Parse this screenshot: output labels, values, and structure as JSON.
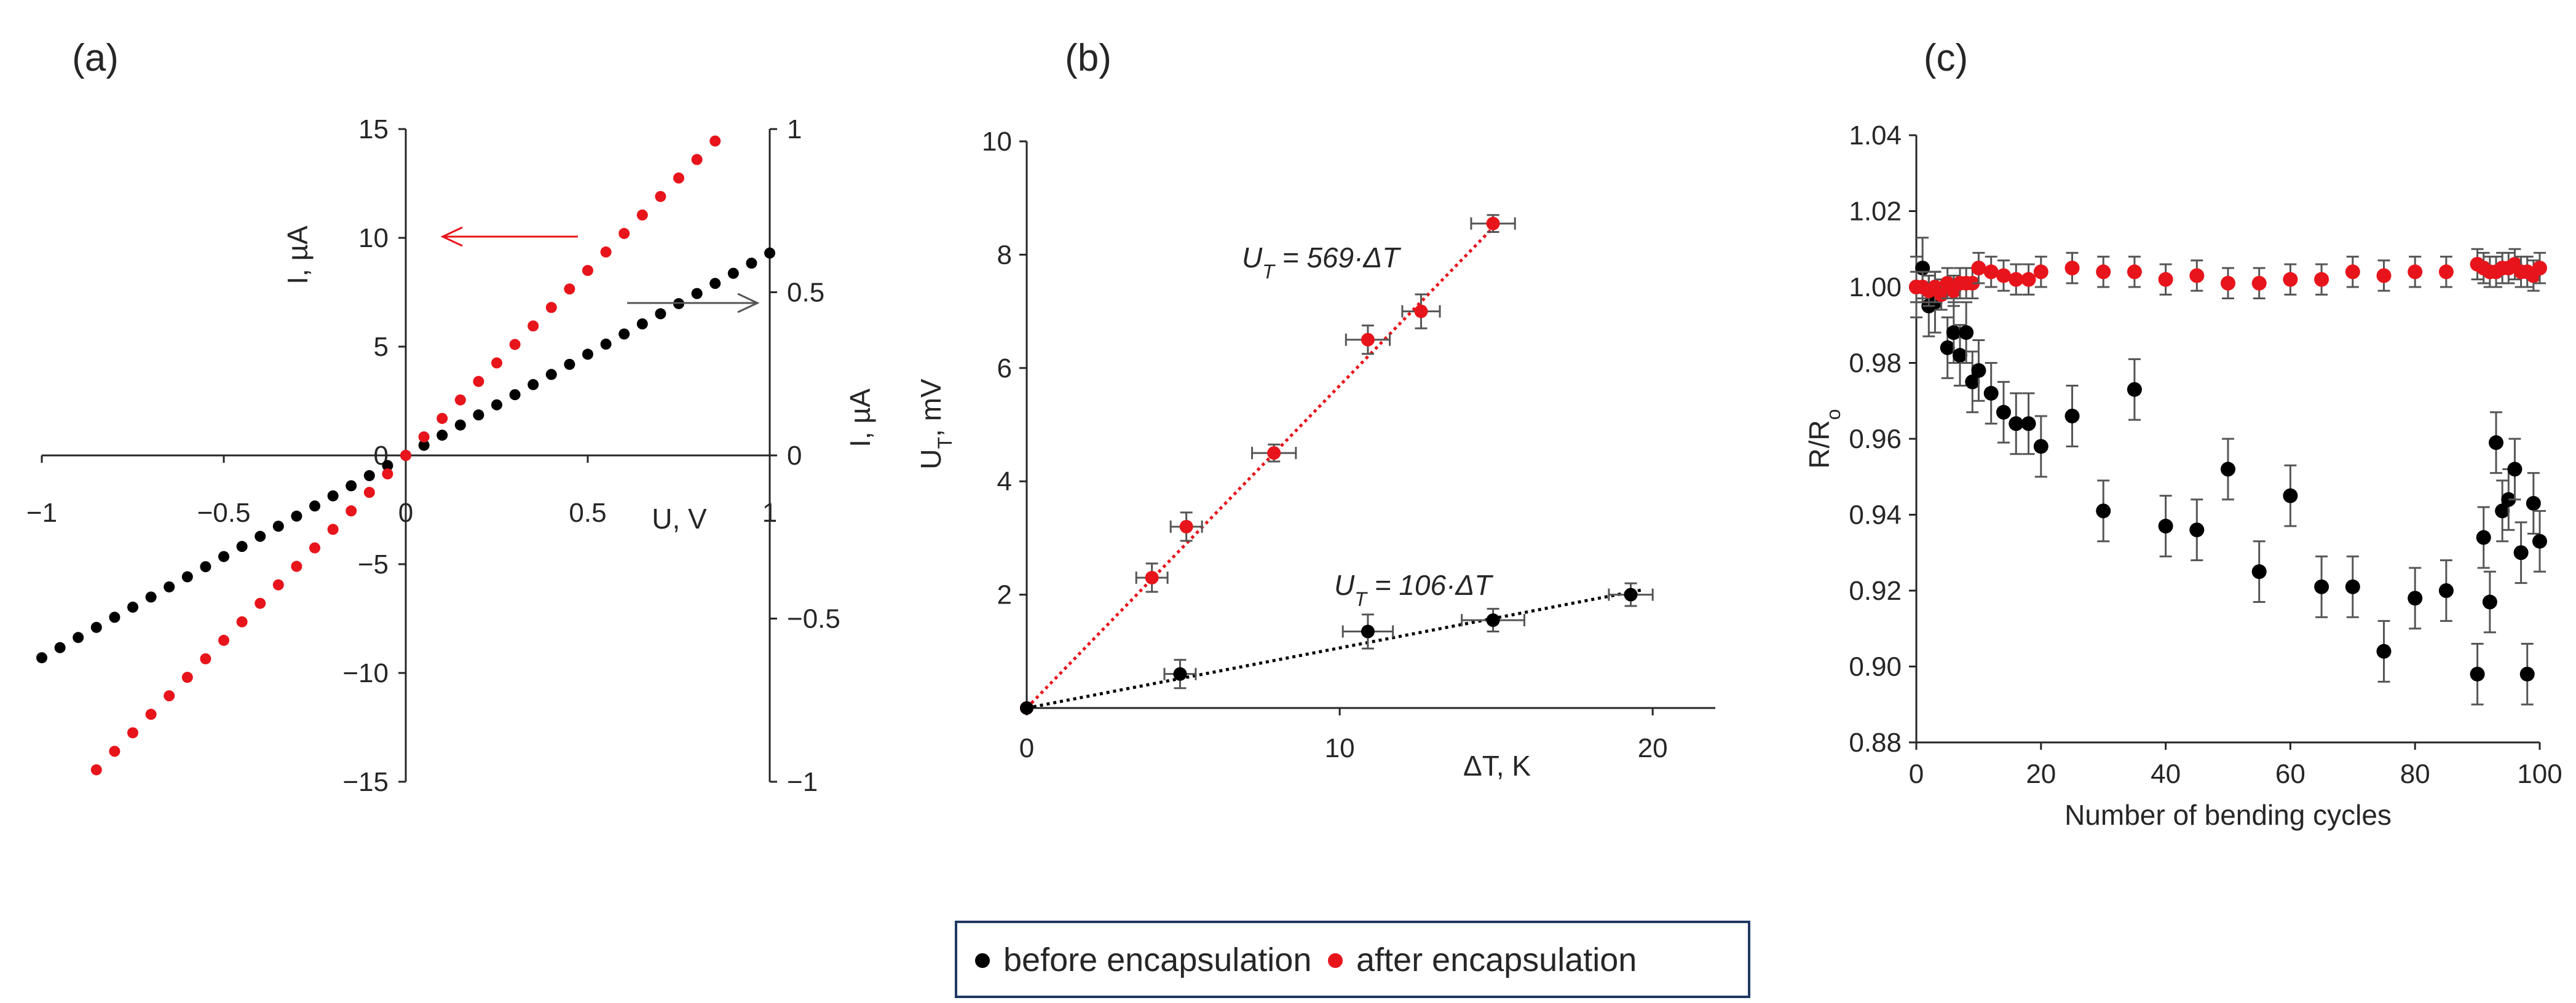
{
  "colors": {
    "before": "#000000",
    "after": "#e8141b",
    "axis": "#262626",
    "errorbar": "#555555",
    "legend_border": "#1f3864"
  },
  "legend": {
    "entries": [
      {
        "key": "before",
        "label": "before encapsulation"
      },
      {
        "key": "after",
        "label": "after encapsulation"
      }
    ]
  },
  "chart_data": [
    {
      "panel": "(a)",
      "type": "scatter",
      "xlabel": "U, V",
      "ylabel_left": "I, µA",
      "ylabel_right": "I, µA",
      "xlim": [
        -1,
        1
      ],
      "ylim_left": [
        -15,
        15
      ],
      "ylim_right": [
        -1,
        1
      ],
      "xticks": [
        "−1",
        "−0.5",
        "0",
        "0.5",
        "1"
      ],
      "yticks_left": [
        "−15",
        "−10",
        "−5",
        "0",
        "5",
        "10",
        "15"
      ],
      "yticks_right": [
        "−1",
        "−0.5",
        "0",
        "0.5",
        "1"
      ],
      "annotations": [
        {
          "text": "arrow pointing left to left axis (after encapsulation)",
          "series": "after"
        },
        {
          "text": "arrow pointing right to right axis (before encapsulation)",
          "series": "before"
        }
      ],
      "series": [
        {
          "name": "before encapsulation",
          "axis": "right",
          "x_start": -1,
          "x_end": 1,
          "x_step": 0.05,
          "slope": 0.62
        },
        {
          "name": "after encapsulation",
          "axis": "left",
          "x_start": -0.85,
          "x_end": 0.85,
          "x_step": 0.05,
          "slope": 17
        }
      ]
    },
    {
      "panel": "(b)",
      "type": "scatter",
      "xlabel": "ΔT, K",
      "ylabel": "U",
      "ylabel_sub": "T",
      "ylabel_tail": ", mV",
      "xlim": [
        0,
        22
      ],
      "ylim": [
        0,
        10
      ],
      "xticks": [
        "0",
        "10",
        "20"
      ],
      "yticks": [
        "2",
        "4",
        "6",
        "8",
        "10"
      ],
      "fits": [
        {
          "series": "after",
          "label_main": "U",
          "label_sub": "T",
          "label_tail": " = 569·ΔT",
          "slope": 0.569
        },
        {
          "series": "before",
          "label_main": "U",
          "label_sub": "T",
          "label_tail": " = 106·ΔT",
          "slope": 0.106
        }
      ],
      "series": [
        {
          "name": "after encapsulation",
          "points": [
            {
              "x": 0,
              "y": 0,
              "xerr": 0,
              "yerr": 0
            },
            {
              "x": 4,
              "y": 2.3,
              "xerr": 0.5,
              "yerr": 0.25
            },
            {
              "x": 5.1,
              "y": 3.2,
              "xerr": 0.5,
              "yerr": 0.25
            },
            {
              "x": 7.9,
              "y": 4.5,
              "xerr": 0.7,
              "yerr": 0.15
            },
            {
              "x": 10.9,
              "y": 6.5,
              "xerr": 0.7,
              "yerr": 0.25
            },
            {
              "x": 12.6,
              "y": 7.0,
              "xerr": 0.6,
              "yerr": 0.3
            },
            {
              "x": 14.9,
              "y": 8.55,
              "xerr": 0.7,
              "yerr": 0.15
            }
          ]
        },
        {
          "name": "before encapsulation",
          "points": [
            {
              "x": 0,
              "y": 0,
              "xerr": 0,
              "yerr": 0
            },
            {
              "x": 4.9,
              "y": 0.6,
              "xerr": 0.5,
              "yerr": 0.25
            },
            {
              "x": 10.9,
              "y": 1.35,
              "xerr": 0.8,
              "yerr": 0.3
            },
            {
              "x": 14.9,
              "y": 1.55,
              "xerr": 1.0,
              "yerr": 0.2
            },
            {
              "x": 19.3,
              "y": 2.0,
              "xerr": 0.7,
              "yerr": 0.2
            }
          ]
        }
      ]
    },
    {
      "panel": "(c)",
      "type": "scatter",
      "xlabel": "Number of bending cycles",
      "ylabel": "R/R",
      "ylabel_sub": "o",
      "xlim": [
        0,
        100
      ],
      "ylim": [
        0.88,
        1.04
      ],
      "xticks": [
        "0",
        "20",
        "40",
        "60",
        "80",
        "100"
      ],
      "yticks": [
        "0.88",
        "0.90",
        "0.92",
        "0.94",
        "0.96",
        "0.98",
        "1.00",
        "1.02",
        "1.04"
      ],
      "series": [
        {
          "name": "after encapsulation",
          "yerr": 0.004,
          "points": [
            [
              0,
              1.0
            ],
            [
              1,
              1.0
            ],
            [
              2,
              0.999
            ],
            [
              3,
              1.0
            ],
            [
              4,
              0.998
            ],
            [
              5,
              1.001
            ],
            [
              6,
              0.999
            ],
            [
              7,
              1.001
            ],
            [
              8,
              1.001
            ],
            [
              9,
              1.001
            ],
            [
              10,
              1.005
            ],
            [
              12,
              1.004
            ],
            [
              14,
              1.003
            ],
            [
              16,
              1.002
            ],
            [
              18,
              1.002
            ],
            [
              20,
              1.004
            ],
            [
              25,
              1.005
            ],
            [
              30,
              1.004
            ],
            [
              35,
              1.004
            ],
            [
              40,
              1.002
            ],
            [
              45,
              1.003
            ],
            [
              50,
              1.001
            ],
            [
              55,
              1.001
            ],
            [
              60,
              1.002
            ],
            [
              65,
              1.002
            ],
            [
              70,
              1.004
            ],
            [
              75,
              1.003
            ],
            [
              80,
              1.004
            ],
            [
              85,
              1.004
            ],
            [
              90,
              1.006
            ],
            [
              91,
              1.005
            ],
            [
              92,
              1.004
            ],
            [
              93,
              1.004
            ],
            [
              94,
              1.005
            ],
            [
              95,
              1.005
            ],
            [
              96,
              1.006
            ],
            [
              97,
              1.004
            ],
            [
              98,
              1.004
            ],
            [
              99,
              1.003
            ],
            [
              100,
              1.005
            ]
          ]
        },
        {
          "name": "before encapsulation",
          "yerr": 0.008,
          "points": [
            [
              0,
              1.0
            ],
            [
              1,
              1.005
            ],
            [
              2,
              0.995
            ],
            [
              3,
              0.996
            ],
            [
              5,
              0.984
            ],
            [
              6,
              0.988
            ],
            [
              7,
              0.982
            ],
            [
              8,
              0.988
            ],
            [
              9,
              0.975
            ],
            [
              10,
              0.978
            ],
            [
              12,
              0.972
            ],
            [
              14,
              0.967
            ],
            [
              16,
              0.964
            ],
            [
              18,
              0.964
            ],
            [
              20,
              0.958
            ],
            [
              25,
              0.966
            ],
            [
              30,
              0.941
            ],
            [
              35,
              0.973
            ],
            [
              40,
              0.937
            ],
            [
              45,
              0.936
            ],
            [
              50,
              0.952
            ],
            [
              55,
              0.925
            ],
            [
              60,
              0.945
            ],
            [
              65,
              0.921
            ],
            [
              70,
              0.921
            ],
            [
              75,
              0.904
            ],
            [
              80,
              0.918
            ],
            [
              85,
              0.92
            ],
            [
              90,
              0.898
            ],
            [
              91,
              0.934
            ],
            [
              92,
              0.917
            ],
            [
              93,
              0.959
            ],
            [
              94,
              0.941
            ],
            [
              95,
              0.944
            ],
            [
              96,
              0.952
            ],
            [
              97,
              0.93
            ],
            [
              98,
              0.898
            ],
            [
              99,
              0.943
            ],
            [
              100,
              0.933
            ]
          ]
        }
      ]
    }
  ]
}
